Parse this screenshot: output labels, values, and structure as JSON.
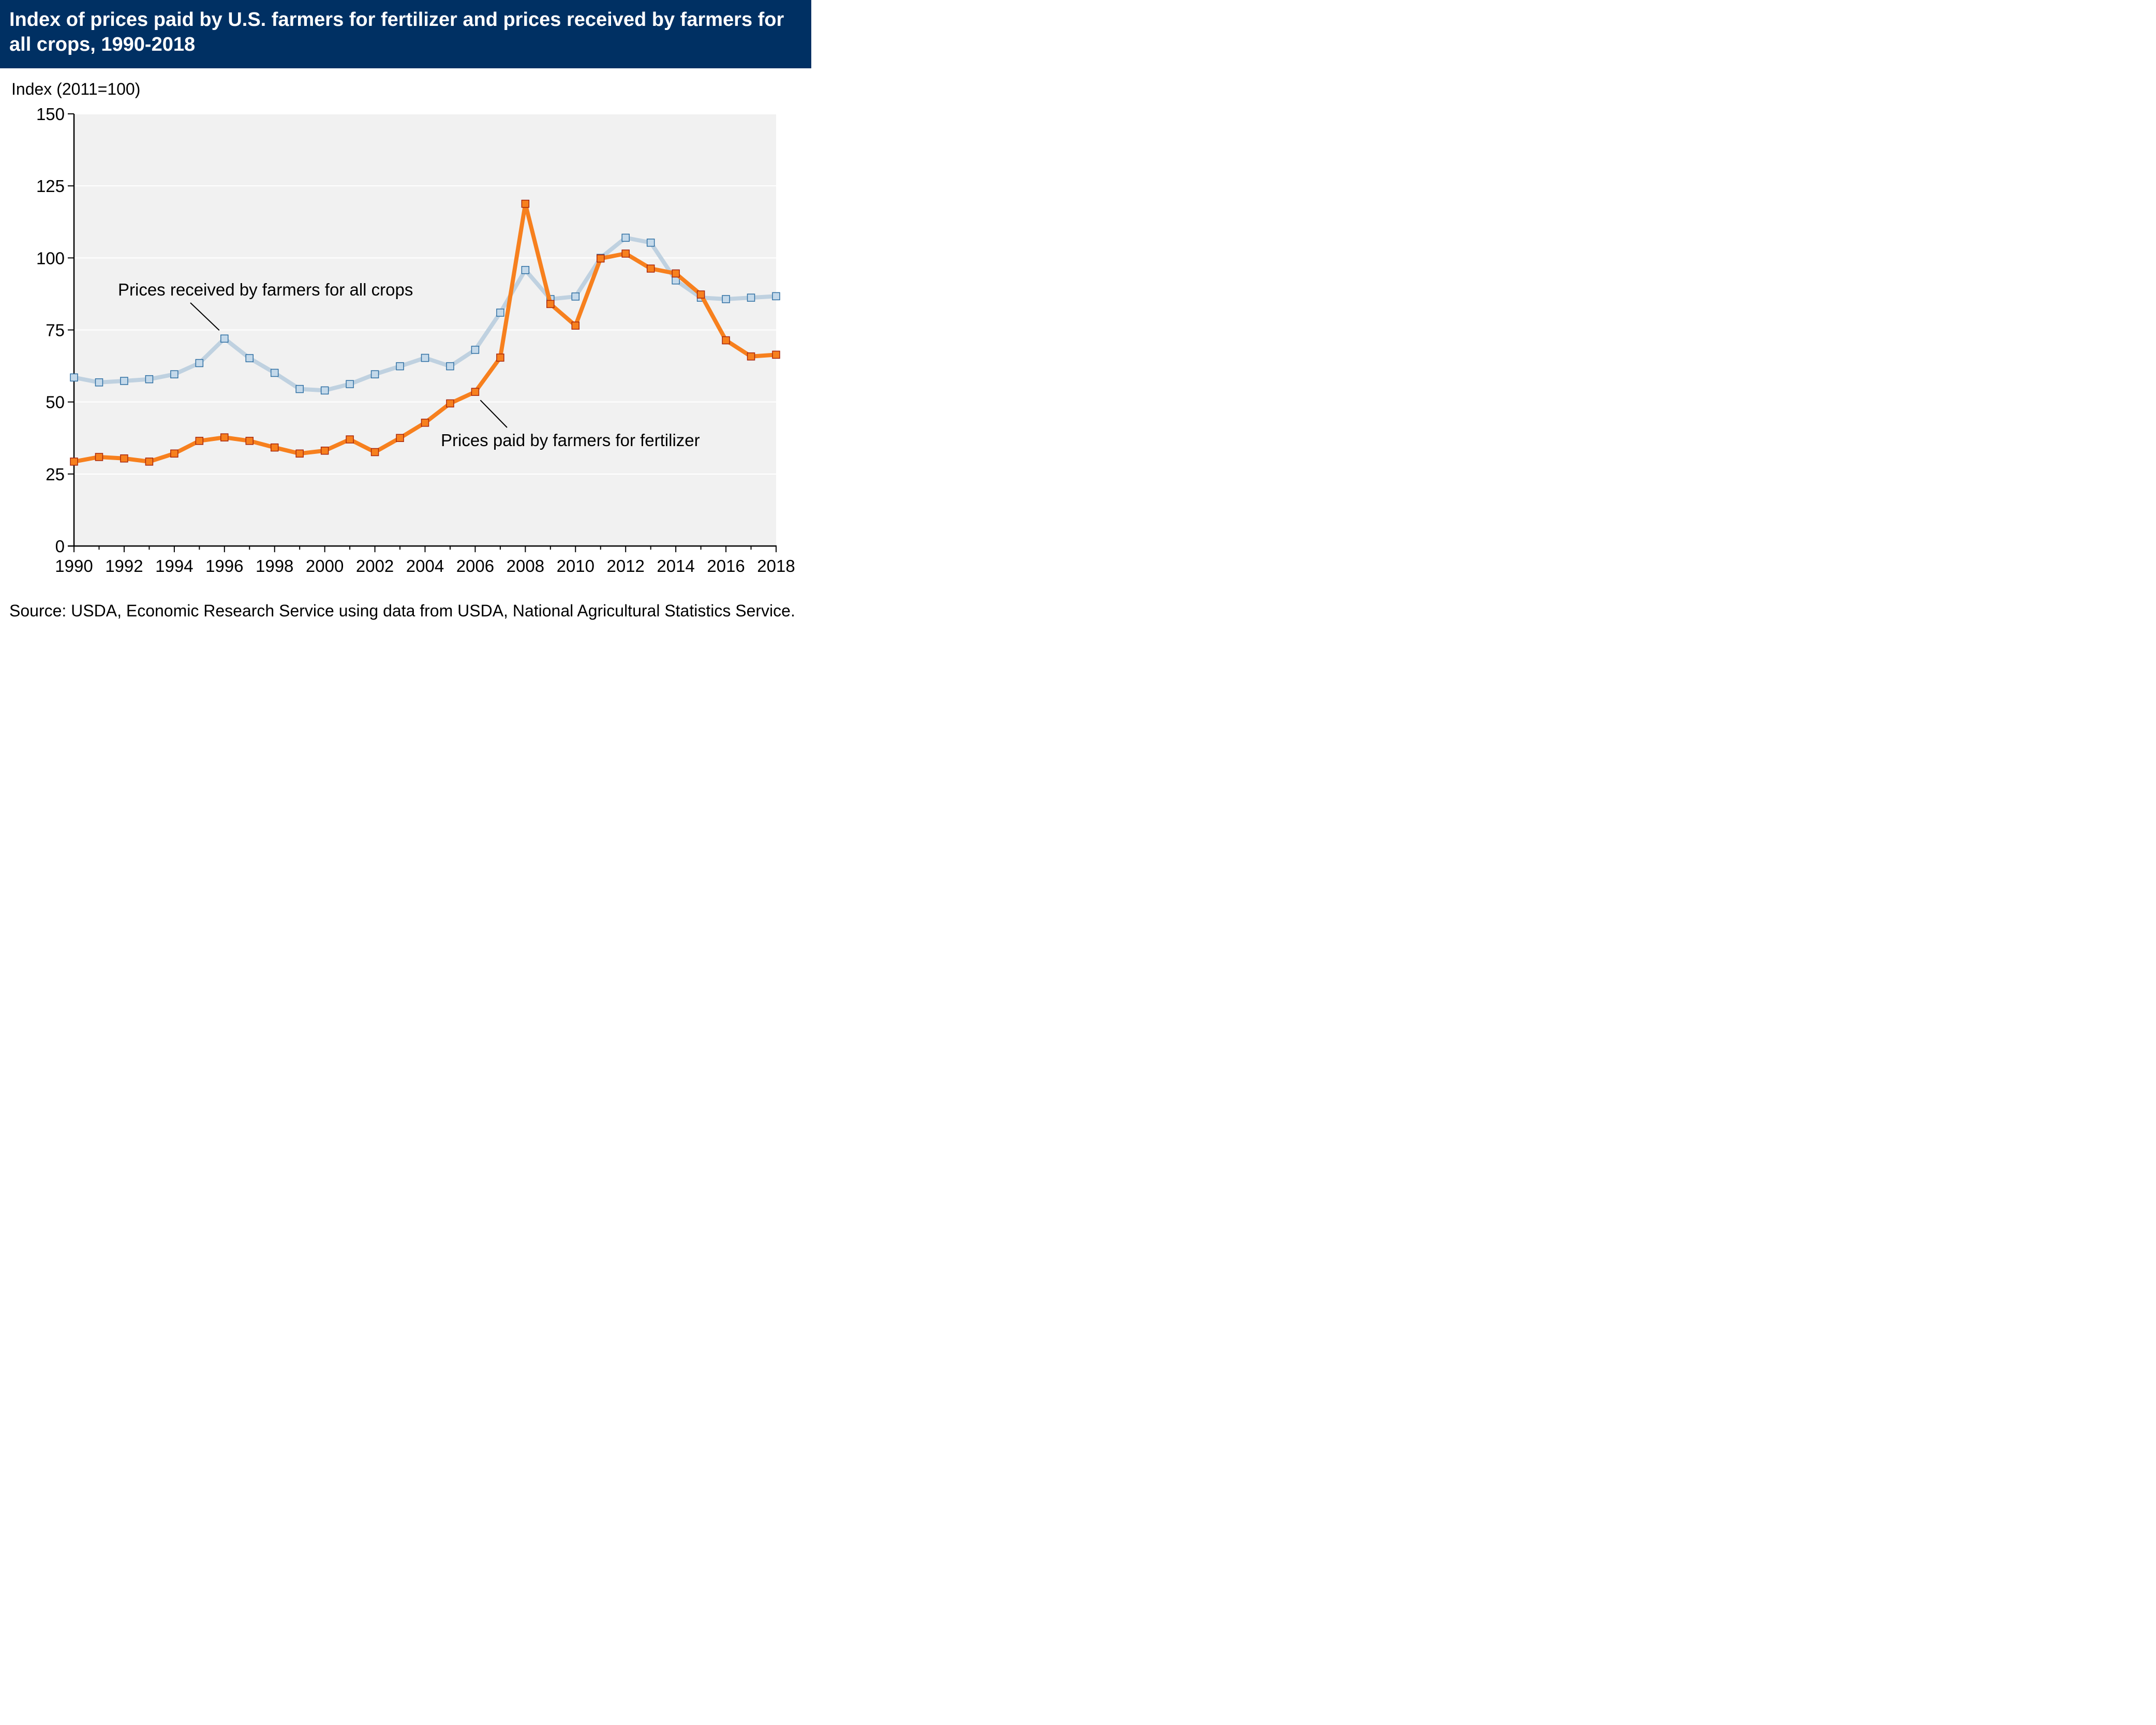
{
  "header": {
    "title": "Index of prices paid by U.S. farmers for fertilizer and prices received by farmers for all crops, 1990-2018"
  },
  "footer": {
    "source": "Source: USDA, Economic Research Service using data from USDA, National Agricultural Statistics Service."
  },
  "colors": {
    "title_bar": "#003063",
    "plot_background": "#f1f1f1",
    "crops_line": "#bfd1e0",
    "crops_marker_fill": "#c4d9ea",
    "crops_marker_edge": "#2e6fa3",
    "fertilizer_line": "#f7801e",
    "fertilizer_marker_fill": "#f7801e",
    "fertilizer_marker_edge": "#a8260d"
  },
  "chart_data": {
    "type": "line",
    "title": "Index of prices paid by U.S. farmers for fertilizer and prices received by farmers for all crops, 1990-2018",
    "xlabel": "",
    "ylabel": "Index (2011=100)",
    "ylim": [
      0,
      150
    ],
    "yticks": [
      0,
      25,
      50,
      75,
      100,
      125,
      150
    ],
    "xlim": [
      1990,
      2018
    ],
    "xticks": [
      1990,
      1992,
      1994,
      1996,
      1998,
      2000,
      2002,
      2004,
      2006,
      2008,
      2010,
      2012,
      2014,
      2016,
      2018
    ],
    "grid": "horizontal",
    "legend": "none",
    "x": [
      1990,
      1991,
      1992,
      1993,
      1994,
      1995,
      1996,
      1997,
      1998,
      1999,
      2000,
      2001,
      2002,
      2003,
      2004,
      2005,
      2006,
      2007,
      2008,
      2009,
      2010,
      2011,
      2012,
      2013,
      2014,
      2015,
      2016,
      2017,
      2018
    ],
    "series": [
      {
        "name": "Prices received by farmers for all crops",
        "values": [
          58.5,
          56.8,
          57.3,
          57.9,
          59.6,
          63.5,
          72.0,
          65.2,
          60.1,
          54.5,
          54.0,
          56.2,
          59.6,
          62.4,
          65.3,
          62.4,
          68.1,
          81.0,
          95.8,
          85.7,
          86.6,
          100,
          107.0,
          105.3,
          92.2,
          86.2,
          85.7,
          86.2,
          86.7
        ]
      },
      {
        "name": "Prices paid by farmers for fertilizer",
        "values": [
          29.3,
          30.9,
          30.4,
          29.3,
          32.1,
          36.5,
          37.7,
          36.5,
          34.2,
          32.1,
          33.1,
          37.0,
          32.6,
          37.5,
          42.8,
          49.5,
          53.5,
          65.4,
          118.8,
          84.0,
          76.5,
          99.8,
          101.5,
          96.3,
          94.6,
          87.3,
          71.4,
          65.8,
          66.4
        ]
      }
    ],
    "annotations": [
      {
        "text": "Prices received by farmers for all crops",
        "series": 0,
        "x": 1996
      },
      {
        "text": "Prices paid by farmers for fertilizer",
        "series": 1,
        "x": 2006
      }
    ]
  }
}
